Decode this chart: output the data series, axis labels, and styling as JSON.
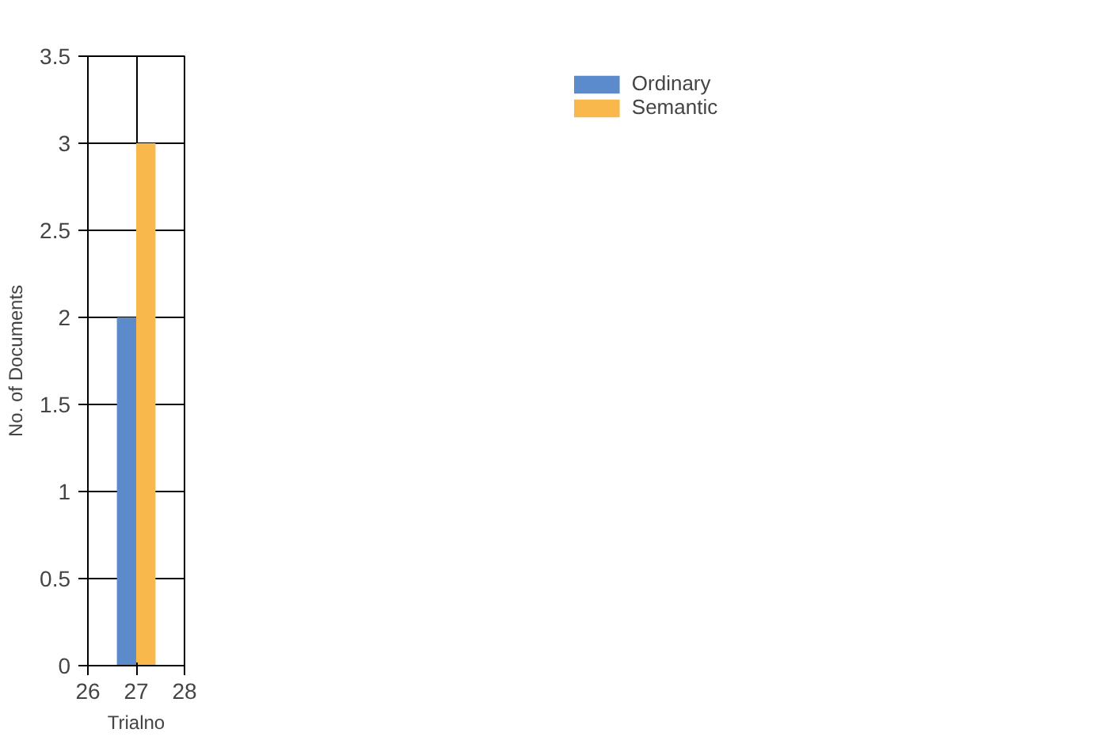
{
  "chart_data": {
    "type": "bar",
    "xlabel": "Trialno",
    "ylabel": "No. of Documents",
    "x": [
      27
    ],
    "series": [
      {
        "name": "Ordinary",
        "color": "#5b8bca",
        "values": [
          2
        ]
      },
      {
        "name": "Semantic",
        "color": "#f8b84c",
        "values": [
          3
        ]
      }
    ],
    "xlim": [
      26,
      28
    ],
    "xticks": [
      26,
      27,
      28
    ],
    "ylim": [
      0,
      3.5
    ],
    "yticks": [
      0,
      0.5,
      1,
      1.5,
      2,
      2.5,
      3,
      3.5
    ],
    "grid": true,
    "legend": "top right"
  }
}
